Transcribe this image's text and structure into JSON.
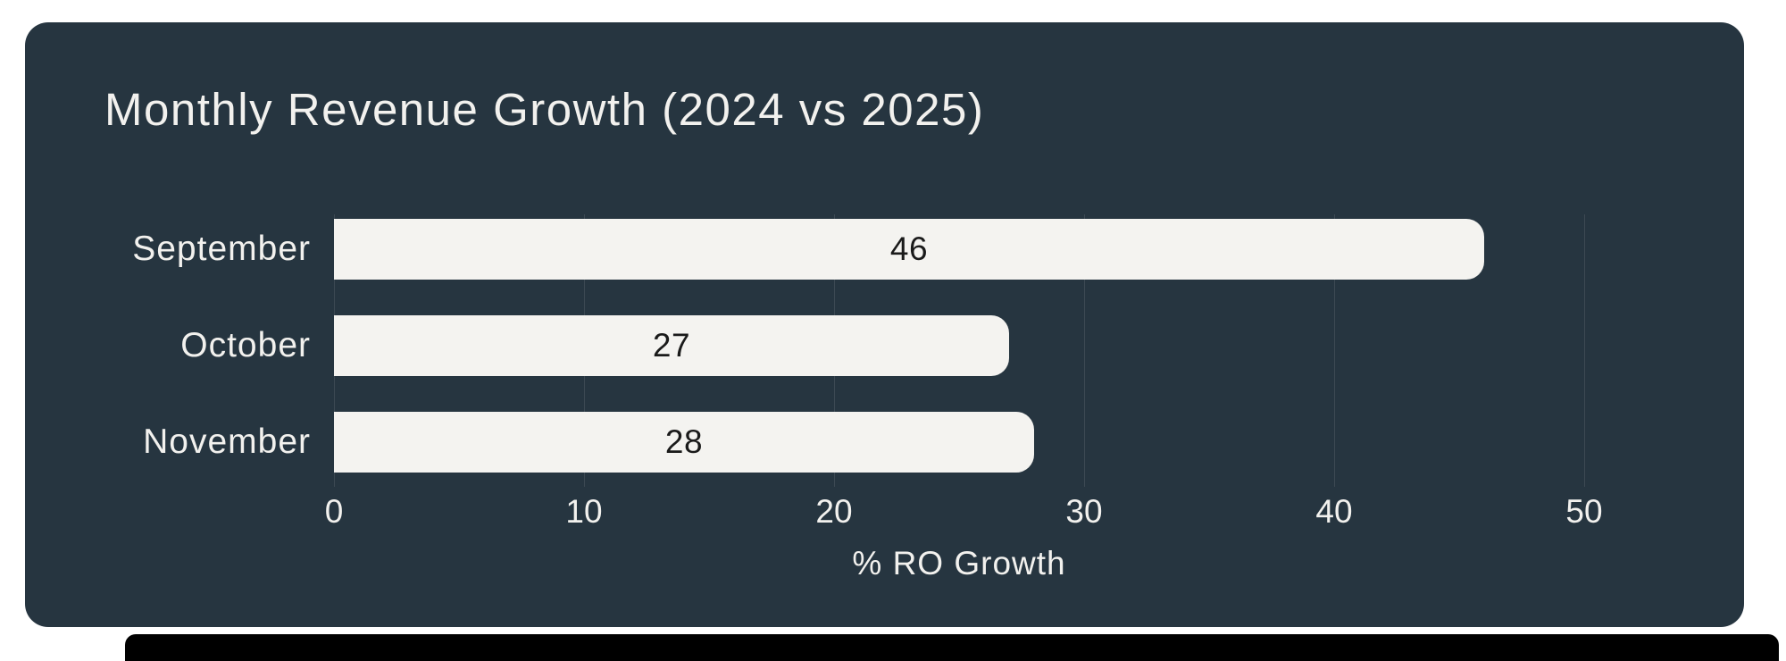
{
  "colors": {
    "page_bg": "#ffffff",
    "card_bg": "#263540",
    "text": "#f2f1ee",
    "bar_fill": "#f4f3f0",
    "bar_value_text": "#1a1a1a",
    "gridline": "#3c4953",
    "bottom_strip": "#000000"
  },
  "chart_data": {
    "type": "bar",
    "orientation": "horizontal",
    "title": "Monthly Revenue Growth (2024 vs 2025)",
    "categories": [
      "September",
      "October",
      "November"
    ],
    "values": [
      46,
      27,
      28
    ],
    "value_labels": [
      "46",
      "27",
      "28"
    ],
    "xlabel": "% RO Growth",
    "ylabel": "",
    "xlim": [
      0,
      50
    ],
    "xticks": [
      0,
      10,
      20,
      30,
      40,
      50
    ],
    "grid": true,
    "legend": false
  }
}
